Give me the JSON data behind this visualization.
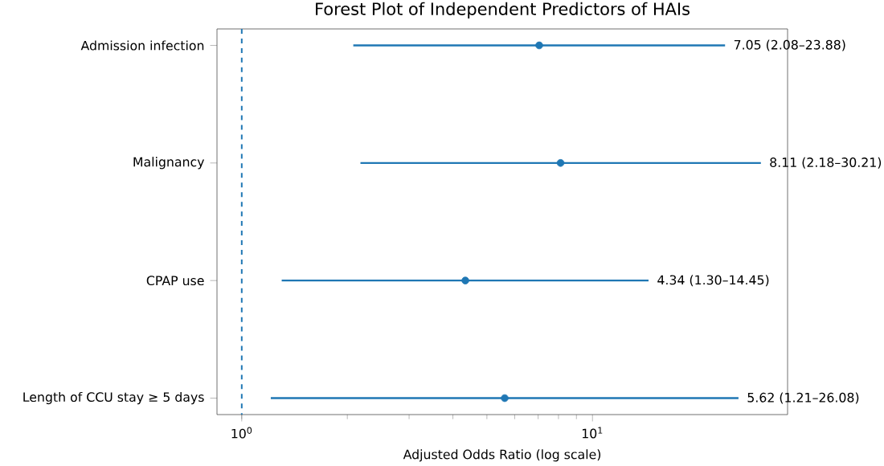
{
  "chart_data": {
    "type": "scatter",
    "title": "Forest Plot of Independent Predictors of HAIs",
    "xlabel": "Adjusted Odds Ratio (log scale)",
    "orientation": "horizontal",
    "categories": [
      "Admission infection",
      "Malignancy",
      "CPAP use",
      "Length of CCU stay ≥ 5 days"
    ],
    "values": [
      7.05,
      8.11,
      4.34,
      5.62
    ],
    "errors": [
      [
        2.08,
        23.88
      ],
      [
        2.18,
        30.21
      ],
      [
        1.3,
        14.45
      ],
      [
        1.21,
        26.08
      ]
    ],
    "annotations": [
      "7.05 (2.08–23.88)",
      "8.11 (2.18–30.21)",
      "4.34 (1.30–14.45)",
      "5.62 (1.21–26.08)"
    ],
    "color": "#1f77b4",
    "marker": "circle",
    "log": "x",
    "grid": false,
    "xlim": [
      0.85,
      36
    ],
    "xticks": [
      {
        "value": 1,
        "label": "10$^{0}$"
      },
      {
        "value": 10,
        "label": "10$^{1}$"
      }
    ],
    "ref_lines": [
      {
        "axis": "x",
        "value": 1,
        "color": "#1f77b4",
        "line_style": "dashed"
      }
    ]
  }
}
